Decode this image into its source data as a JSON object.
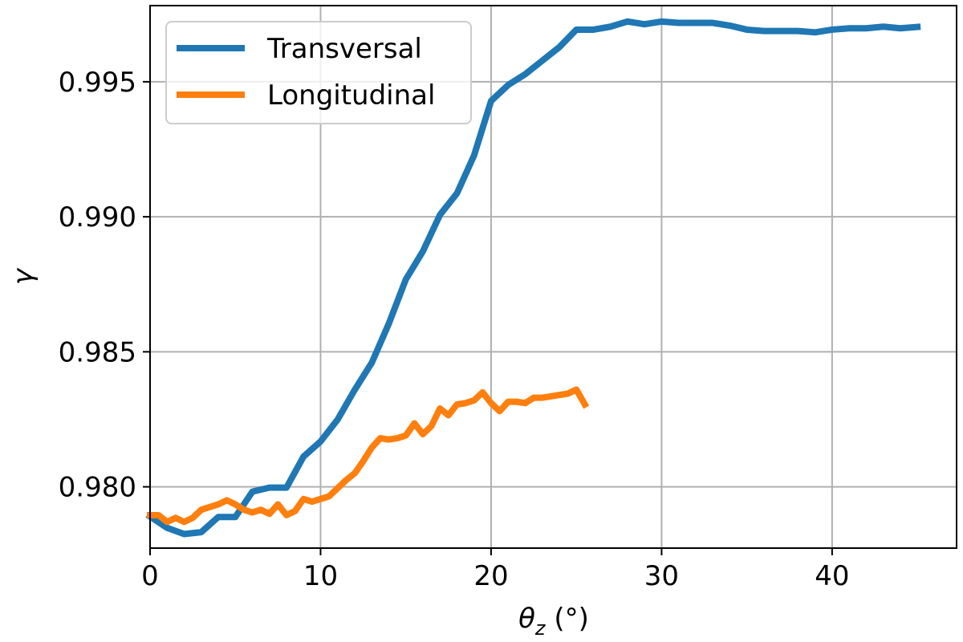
{
  "chart_data": {
    "type": "line",
    "title": "",
    "xlabel": "θz (°)",
    "ylabel": "γ",
    "xlim": [
      0,
      47.3
    ],
    "ylim": [
      0.97773,
      0.99782
    ],
    "xticks": [
      0,
      10,
      20,
      30,
      40
    ],
    "yticks": [
      0.98,
      0.985,
      0.99,
      0.995
    ],
    "xtick_labels": [
      "0",
      "10",
      "20",
      "30",
      "40"
    ],
    "ytick_labels": [
      "0.980",
      "0.985",
      "0.990",
      "0.995"
    ],
    "grid": true,
    "legend_position": "top-left",
    "series": [
      {
        "name": "Transversal",
        "color": "#1f77b4",
        "x": [
          0,
          1,
          2,
          3,
          4,
          5,
          6,
          7,
          8,
          9,
          10,
          11,
          12,
          13,
          14,
          15,
          16,
          17,
          18,
          19,
          20,
          21,
          22,
          23,
          24,
          25,
          26,
          27,
          28,
          29,
          30,
          31,
          32,
          33,
          34,
          35,
          36,
          37,
          38,
          39,
          40,
          41,
          42,
          43,
          44,
          45
        ],
        "y": [
          0.9789,
          0.97848,
          0.97825,
          0.97832,
          0.97888,
          0.97888,
          0.97982,
          0.97997,
          0.97997,
          0.98112,
          0.98168,
          0.98249,
          0.98359,
          0.98459,
          0.98604,
          0.98768,
          0.98872,
          0.99007,
          0.99087,
          0.99227,
          0.99429,
          0.99488,
          0.99528,
          0.99578,
          0.99628,
          0.99693,
          0.99693,
          0.99704,
          0.99723,
          0.99713,
          0.99723,
          0.99718,
          0.99718,
          0.99718,
          0.99708,
          0.99693,
          0.99688,
          0.99688,
          0.99688,
          0.99683,
          0.99693,
          0.99698,
          0.99698,
          0.99704,
          0.99698,
          0.99703
        ]
      },
      {
        "name": "Longitudinal",
        "color": "#ff7f0e",
        "x": [
          0,
          0.5,
          1,
          1.5,
          2,
          2.5,
          3,
          3.5,
          4,
          4.5,
          5,
          5.5,
          6,
          6.5,
          7,
          7.5,
          8,
          8.5,
          9,
          9.5,
          10,
          10.5,
          11,
          11.5,
          12,
          12.5,
          13,
          13.5,
          14,
          14.5,
          15,
          15.5,
          16,
          16.5,
          17,
          17.5,
          18,
          18.5,
          19,
          19.5,
          20,
          20.5,
          21,
          21.5,
          22,
          22.5,
          23,
          23.5,
          24,
          24.5,
          25,
          25.5
        ],
        "y": [
          0.97895,
          0.97895,
          0.9787,
          0.97885,
          0.9787,
          0.97885,
          0.97915,
          0.97925,
          0.97935,
          0.9795,
          0.97935,
          0.97915,
          0.97905,
          0.97915,
          0.979,
          0.97935,
          0.97895,
          0.9791,
          0.97955,
          0.97945,
          0.97955,
          0.97965,
          0.97995,
          0.98025,
          0.9805,
          0.98095,
          0.98145,
          0.9818,
          0.98175,
          0.9818,
          0.9819,
          0.98235,
          0.98195,
          0.98225,
          0.9829,
          0.98265,
          0.98305,
          0.9831,
          0.9832,
          0.9835,
          0.9831,
          0.9828,
          0.98315,
          0.98315,
          0.9831,
          0.9833,
          0.9833,
          0.98335,
          0.9834,
          0.98345,
          0.9836,
          0.98305
        ]
      }
    ]
  }
}
